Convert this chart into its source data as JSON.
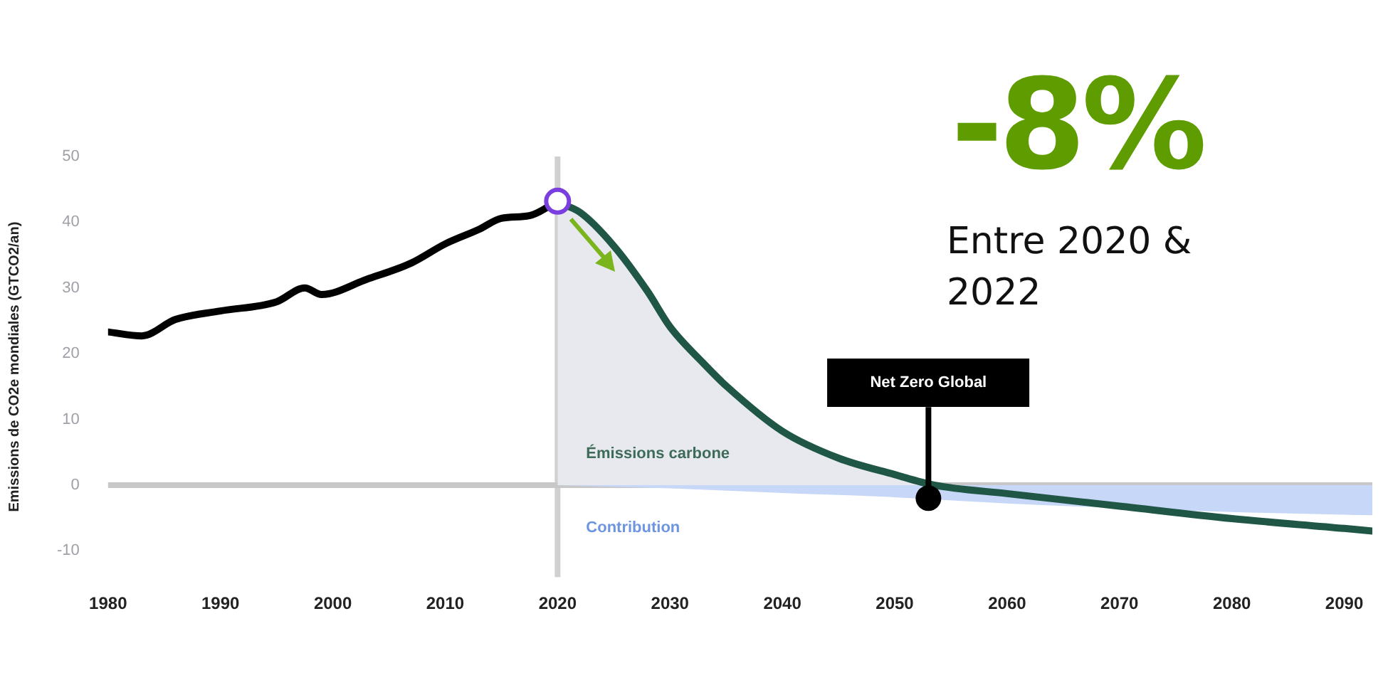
{
  "chart_data": {
    "type": "line",
    "ylabel": "Emissions de CO2e mondiales (GTCO2/an)",
    "xlim": [
      1980,
      2092.5
    ],
    "xticks": [
      1980,
      1990,
      2000,
      2010,
      2020,
      2030,
      2040,
      2050,
      2060,
      2070,
      2080,
      2090
    ],
    "ylim": [
      -14,
      50
    ],
    "yticks": [
      -10,
      0,
      10,
      20,
      30,
      40,
      50
    ],
    "grid": false,
    "legend": false,
    "series": [
      {
        "type": "area",
        "name": "Émissions carbone",
        "color": "#e8e9ef",
        "x": [
          2020,
          2022,
          2025,
          2028,
          2030,
          2033,
          2035,
          2040,
          2045,
          2050,
          2053.5
        ],
        "values": [
          43,
          41.5,
          36.4,
          29.5,
          24.1,
          18.5,
          15.1,
          8.2,
          4.1,
          1.6,
          0
        ]
      },
      {
        "type": "area",
        "name": "Contribution",
        "color": "#c6d7f7",
        "x": [
          2020,
          2030,
          2040,
          2048,
          2060,
          2070,
          2080,
          2090,
          2092.5
        ],
        "values": [
          0,
          -0.5,
          -1.2,
          -1.7,
          -2.8,
          -3.5,
          -4.1,
          -4.5,
          -4.6
        ]
      },
      {
        "color": "#000000",
        "x": [
          1980,
          1983,
          1986,
          1990,
          1995,
          1997.5,
          1999,
          2003,
          2007,
          2010,
          2013,
          2015,
          2017.5,
          2020
        ],
        "values": [
          23.3,
          22.7,
          25.2,
          26.5,
          27.9,
          30,
          29,
          31.3,
          33.8,
          36.7,
          38.9,
          40.6,
          41,
          43.2
        ]
      },
      {
        "color": "#1f5645",
        "x": [
          2020,
          2022,
          2025,
          2028,
          2030,
          2033,
          2035,
          2040,
          2045,
          2050,
          2053.5,
          2060,
          2070,
          2080,
          2090,
          2092.5
        ],
        "values": [
          43,
          41.5,
          36.4,
          29.5,
          24.1,
          18.5,
          15.1,
          8.2,
          4.1,
          1.6,
          0,
          -1.3,
          -3.2,
          -5.1,
          -6.6,
          -7
        ]
      },
      {
        "type": "scatter",
        "marker": "circle",
        "color": "#7b3fe0",
        "x": [
          2020
        ],
        "values": [
          43.2
        ]
      }
    ],
    "ref_lines": [
      {
        "axis": "x",
        "value": 2020,
        "color": "#d0d0d0"
      },
      {
        "axis": "y",
        "value": 0,
        "color": "#c8c8c8"
      }
    ],
    "annotations": [
      {
        "text": "Net Zero Global",
        "x": 2053,
        "y": -2
      },
      "-8%",
      "Entre 2020 & 2022"
    ]
  }
}
